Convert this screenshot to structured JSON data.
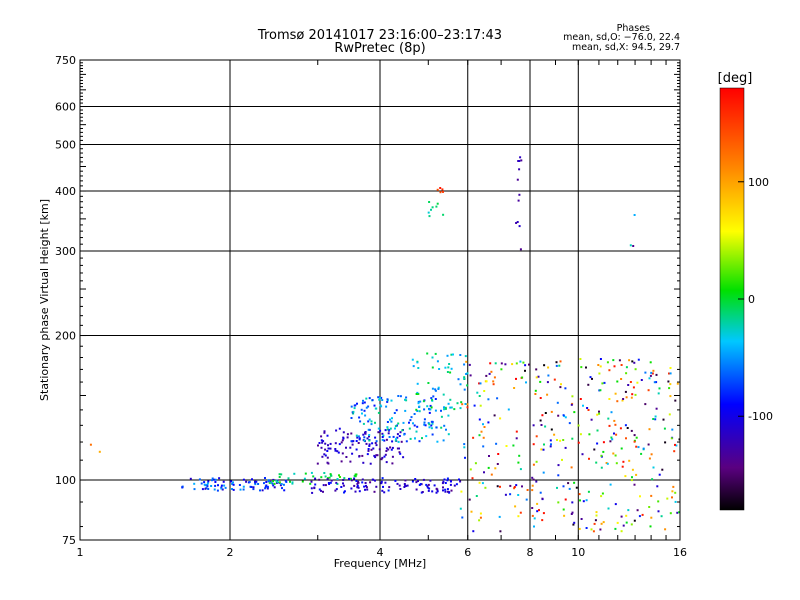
{
  "chart_data": {
    "type": "scatter",
    "title": "Tromsø 20141017 23:16:00–23:17:43",
    "subtitle": "RwPretec (8p)",
    "xlabel": "Frequency [MHz]",
    "ylabel": "Stationary phase Virtual Height [km]",
    "x_scale": "log",
    "y_scale": "log",
    "xlim": [
      1,
      16
    ],
    "ylim": [
      75,
      750
    ],
    "x_ticks": [
      1,
      2,
      4,
      6,
      8,
      10,
      16
    ],
    "y_ticks": [
      75,
      100,
      200,
      300,
      400,
      500,
      600,
      750
    ],
    "grid": true,
    "phase_info": {
      "heading": "Phases",
      "line1": "mean, sd,O: −76.0, 22.4",
      "line2": "mean, sd,X:  94.5, 29.7"
    },
    "colorbar": {
      "label": "[deg]",
      "ticks": [
        100,
        0,
        -100
      ],
      "range": [
        -180,
        180
      ],
      "colormap": "rainbow"
    },
    "clusters": [
      {
        "x": [
          1.6,
          2.6
        ],
        "y": [
          95,
          101
        ],
        "phase": [
          -120,
          -40
        ],
        "count": 90
      },
      {
        "x": [
          2.4,
          3.6
        ],
        "y": [
          98,
          104
        ],
        "phase": [
          -30,
          20
        ],
        "count": 40
      },
      {
        "x": [
          2.9,
          5.8
        ],
        "y": [
          94,
          101
        ],
        "phase": [
          -140,
          -80
        ],
        "count": 120
      },
      {
        "x": [
          3.0,
          4.5
        ],
        "y": [
          108,
          128
        ],
        "phase": [
          -140,
          -90
        ],
        "count": 120
      },
      {
        "x": [
          3.5,
          5.5
        ],
        "y": [
          120,
          150
        ],
        "phase": [
          -90,
          -10
        ],
        "count": 150
      },
      {
        "x": [
          4.6,
          6.0
        ],
        "y": [
          140,
          185
        ],
        "phase": [
          -60,
          10
        ],
        "count": 60
      },
      {
        "x": [
          5.0,
          5.4
        ],
        "y": [
          350,
          380
        ],
        "phase": [
          -30,
          0
        ],
        "count": 8
      },
      {
        "x": [
          5.2,
          5.5
        ],
        "y": [
          395,
          410
        ],
        "phase": [
          140,
          175
        ],
        "count": 5
      },
      {
        "x": [
          7.5,
          7.7
        ],
        "y": [
          300,
          475
        ],
        "phase": [
          -140,
          -110
        ],
        "count": 12
      },
      {
        "x": [
          5.8,
          16.0
        ],
        "y": [
          78,
          180
        ],
        "phase": [
          -180,
          180
        ],
        "count": 400
      },
      {
        "x": [
          1.05,
          1.12
        ],
        "y": [
          103,
          120
        ],
        "phase": [
          90,
          130
        ],
        "count": 2
      },
      {
        "x": [
          12.5,
          13.0
        ],
        "y": [
          290,
          370
        ],
        "phase": [
          -160,
          20
        ],
        "count": 3
      }
    ]
  }
}
